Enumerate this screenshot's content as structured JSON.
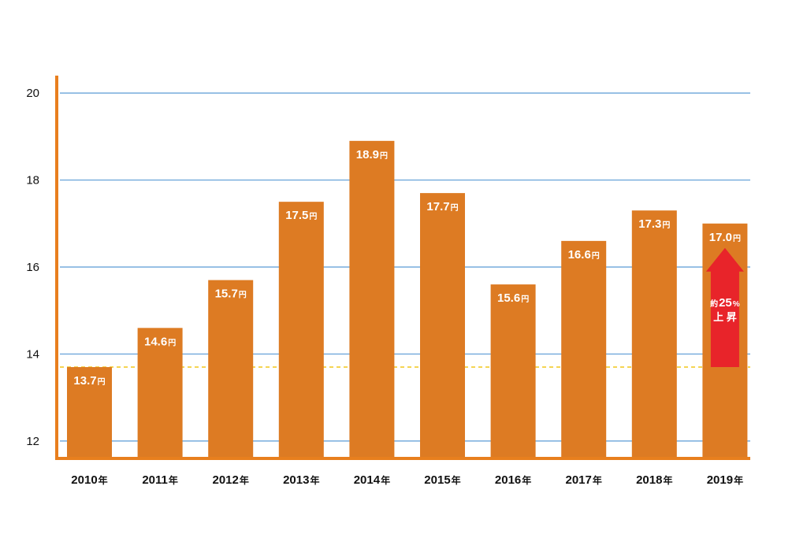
{
  "chart_data": {
    "type": "bar",
    "title": "",
    "xlabel": "",
    "ylabel": "",
    "categories": [
      "2010",
      "2011",
      "2012",
      "2013",
      "2014",
      "2015",
      "2016",
      "2017",
      "2018",
      "2019"
    ],
    "category_suffix": "年",
    "values": [
      13.7,
      14.6,
      15.7,
      17.5,
      18.9,
      17.7,
      15.6,
      16.6,
      17.3,
      17.0
    ],
    "value_unit": "円",
    "ylim": [
      11.6,
      20.4
    ],
    "yticks": [
      12,
      14,
      16,
      18,
      20
    ],
    "grid": true,
    "legend": "none",
    "reference_line": {
      "value": 13.7,
      "style": "dashed"
    },
    "annotation": {
      "category": "2019",
      "from": 13.7,
      "to": 17.0,
      "prefix": "約",
      "number": "25",
      "suffix": "%",
      "line2": "上 昇"
    },
    "colors": {
      "bar": "#dd7b23",
      "axis": "#e87f1e",
      "grid": "#5b9bd5",
      "reference_line": "#f2c71a",
      "arrow": "#e8242a"
    }
  }
}
